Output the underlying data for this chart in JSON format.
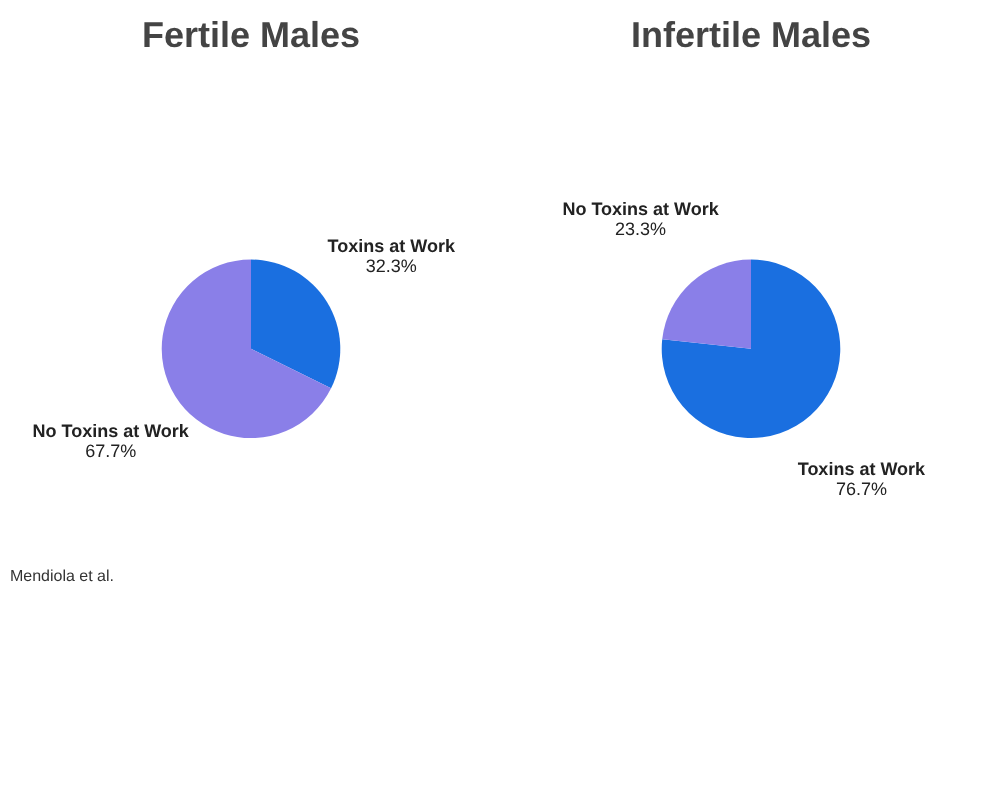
{
  "chart_data": [
    {
      "type": "pie",
      "title": "Fertile Males",
      "categories": [
        "Toxins at Work",
        "No Toxins at Work"
      ],
      "values": [
        32.3,
        67.7
      ],
      "colors": [
        "#1a6fe0",
        "#8a7fe8"
      ],
      "value_labels": [
        "32.3%",
        "67.7%"
      ],
      "legend": false,
      "annotations": [
        "Mendiola et al."
      ]
    },
    {
      "type": "pie",
      "title": "Infertile Males",
      "categories": [
        "Toxins at Work",
        "No Toxins at Work"
      ],
      "values": [
        76.7,
        23.3
      ],
      "colors": [
        "#1a6fe0",
        "#8a7fe8"
      ],
      "value_labels": [
        "76.7%",
        "23.3%"
      ],
      "legend": false
    }
  ]
}
